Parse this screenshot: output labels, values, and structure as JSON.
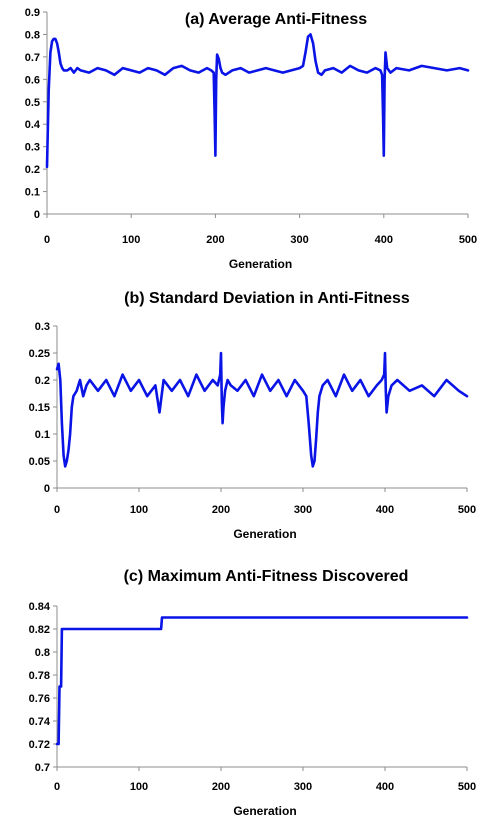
{
  "colors": {
    "series": "#0a14e6",
    "axis": "#8c8c8c"
  },
  "chart_data": [
    {
      "type": "line",
      "title": "(a) Average Anti-Fitness",
      "xlabel": "Generation",
      "ylabel": "",
      "xlim": [
        0,
        500
      ],
      "ylim": [
        0,
        0.9
      ],
      "xticks": [
        0,
        100,
        200,
        300,
        400,
        500
      ],
      "yticks": [
        0,
        0.1,
        0.2,
        0.3,
        0.4,
        0.5,
        0.6,
        0.7,
        0.8,
        0.9
      ],
      "xtick_labels": [
        "0",
        "100",
        "200",
        "300",
        "400",
        "500"
      ],
      "ytick_labels": [
        "0",
        "0.1",
        "0.2",
        "0.3",
        "0.4",
        "0.5",
        "0.6",
        "0.7",
        "0.8",
        "0.9"
      ],
      "grid": false,
      "legend": "none",
      "series": [
        {
          "name": "",
          "x": [
            0,
            2,
            4,
            6,
            8,
            10,
            12,
            14,
            16,
            18,
            20,
            24,
            28,
            32,
            36,
            40,
            50,
            60,
            70,
            80,
            90,
            100,
            110,
            120,
            130,
            140,
            150,
            160,
            170,
            180,
            190,
            195,
            198,
            199,
            200,
            201,
            202,
            204,
            206,
            208,
            212,
            220,
            230,
            240,
            250,
            260,
            270,
            280,
            290,
            300,
            304,
            307,
            310,
            313,
            316,
            319,
            322,
            326,
            330,
            340,
            350,
            360,
            370,
            380,
            390,
            396,
            398,
            399,
            400,
            401,
            402,
            404,
            408,
            415,
            430,
            445,
            460,
            475,
            490,
            500
          ],
          "y": [
            0.21,
            0.55,
            0.72,
            0.77,
            0.78,
            0.78,
            0.76,
            0.72,
            0.67,
            0.65,
            0.64,
            0.64,
            0.65,
            0.63,
            0.65,
            0.64,
            0.63,
            0.65,
            0.64,
            0.62,
            0.65,
            0.64,
            0.63,
            0.65,
            0.64,
            0.62,
            0.65,
            0.66,
            0.64,
            0.63,
            0.65,
            0.64,
            0.63,
            0.45,
            0.26,
            0.6,
            0.71,
            0.69,
            0.65,
            0.63,
            0.62,
            0.64,
            0.65,
            0.63,
            0.64,
            0.65,
            0.64,
            0.63,
            0.64,
            0.65,
            0.66,
            0.72,
            0.79,
            0.8,
            0.76,
            0.68,
            0.63,
            0.62,
            0.64,
            0.65,
            0.63,
            0.66,
            0.64,
            0.63,
            0.65,
            0.64,
            0.62,
            0.45,
            0.26,
            0.6,
            0.72,
            0.65,
            0.63,
            0.65,
            0.64,
            0.66,
            0.65,
            0.64,
            0.65,
            0.64
          ]
        }
      ]
    },
    {
      "type": "line",
      "title": "(b) Standard Deviation in Anti-Fitness",
      "xlabel": "Generation",
      "ylabel": "",
      "xlim": [
        0,
        500
      ],
      "ylim": [
        0,
        0.3
      ],
      "xticks": [
        0,
        100,
        200,
        300,
        400,
        500
      ],
      "yticks": [
        0,
        0.05,
        0.1,
        0.15,
        0.2,
        0.25,
        0.3
      ],
      "xtick_labels": [
        "0",
        "100",
        "200",
        "300",
        "400",
        "500"
      ],
      "ytick_labels": [
        "0",
        "0.05",
        "0.1",
        "0.15",
        "0.2",
        "0.25",
        "0.3"
      ],
      "grid": false,
      "legend": "none",
      "series": [
        {
          "name": "",
          "x": [
            0,
            2,
            4,
            6,
            8,
            10,
            12,
            14,
            16,
            18,
            20,
            24,
            28,
            32,
            36,
            40,
            50,
            60,
            70,
            80,
            90,
            100,
            110,
            120,
            125,
            130,
            140,
            150,
            160,
            170,
            180,
            190,
            196,
            199,
            200,
            201,
            202,
            203,
            205,
            208,
            212,
            220,
            230,
            240,
            250,
            260,
            270,
            280,
            290,
            300,
            304,
            307,
            310,
            312,
            314,
            316,
            318,
            320,
            324,
            330,
            340,
            350,
            360,
            370,
            380,
            390,
            396,
            399,
            400,
            401,
            402,
            404,
            408,
            415,
            430,
            445,
            460,
            475,
            490,
            500
          ],
          "y": [
            0.22,
            0.23,
            0.2,
            0.12,
            0.06,
            0.04,
            0.05,
            0.07,
            0.1,
            0.15,
            0.17,
            0.18,
            0.2,
            0.17,
            0.19,
            0.2,
            0.18,
            0.2,
            0.17,
            0.21,
            0.18,
            0.2,
            0.17,
            0.19,
            0.14,
            0.2,
            0.18,
            0.2,
            0.17,
            0.21,
            0.18,
            0.2,
            0.19,
            0.21,
            0.25,
            0.16,
            0.12,
            0.15,
            0.18,
            0.2,
            0.19,
            0.18,
            0.2,
            0.17,
            0.21,
            0.18,
            0.2,
            0.17,
            0.2,
            0.18,
            0.17,
            0.12,
            0.06,
            0.04,
            0.05,
            0.09,
            0.14,
            0.17,
            0.19,
            0.2,
            0.17,
            0.21,
            0.18,
            0.2,
            0.17,
            0.19,
            0.2,
            0.21,
            0.25,
            0.18,
            0.14,
            0.17,
            0.19,
            0.2,
            0.18,
            0.19,
            0.17,
            0.2,
            0.18,
            0.17
          ]
        }
      ]
    },
    {
      "type": "line",
      "title": "(c) Maximum Anti-Fitness Discovered",
      "xlabel": "Generation",
      "ylabel": "",
      "xlim": [
        0,
        500
      ],
      "ylim": [
        0.7,
        0.84
      ],
      "xticks": [
        0,
        100,
        200,
        300,
        400,
        500
      ],
      "yticks": [
        0.7,
        0.72,
        0.74,
        0.76,
        0.78,
        0.8,
        0.82,
        0.84
      ],
      "xtick_labels": [
        "0",
        "100",
        "200",
        "300",
        "400",
        "500"
      ],
      "ytick_labels": [
        "0.7",
        "0.72",
        "0.74",
        "0.76",
        "0.78",
        "0.8",
        "0.82",
        "0.84"
      ],
      "grid": false,
      "legend": "none",
      "series": [
        {
          "name": "",
          "x": [
            0,
            2,
            3,
            5,
            6,
            127,
            128,
            500
          ],
          "y": [
            0.72,
            0.72,
            0.77,
            0.77,
            0.82,
            0.82,
            0.83,
            0.83
          ]
        }
      ]
    }
  ]
}
